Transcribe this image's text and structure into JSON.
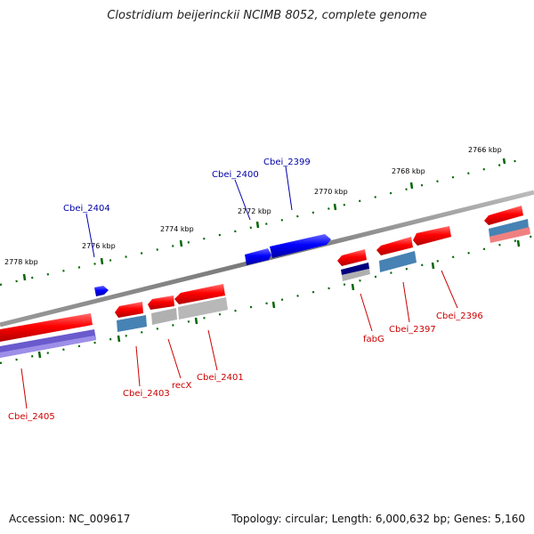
{
  "title": "Clostridium beijerinckii NCIMB 8052, complete genome",
  "footer": {
    "accession": "Accession: NC_009617",
    "summary": "Topology: circular; Length: 6,000,632 bp; Genes: 5,160"
  },
  "ticks": [
    {
      "label": "2766 kbp"
    },
    {
      "label": "2768 kbp"
    },
    {
      "label": "2770 kbp"
    },
    {
      "label": "2772 kbp"
    },
    {
      "label": "2774 kbp"
    },
    {
      "label": "2776 kbp"
    },
    {
      "label": "2778 kbp"
    }
  ],
  "gene_labels": [
    {
      "text": "Cbei_2399",
      "strand": "forward"
    },
    {
      "text": "Cbei_2400",
      "strand": "forward"
    },
    {
      "text": "Cbei_2404",
      "strand": "forward"
    },
    {
      "text": "fabG",
      "strand": "reverse"
    },
    {
      "text": "Cbei_2396",
      "strand": "reverse"
    },
    {
      "text": "Cbei_2397",
      "strand": "reverse"
    },
    {
      "text": "Cbei_2401",
      "strand": "reverse"
    },
    {
      "text": "recX",
      "strand": "reverse"
    },
    {
      "text": "Cbei_2403",
      "strand": "reverse"
    },
    {
      "text": "Cbei_2405",
      "strand": "reverse"
    }
  ],
  "colors": {
    "forward_gene": "#0000ee",
    "reverse_gene": "#ee0000",
    "backbone": "#888888",
    "tick": "#006600",
    "forward_label": "#0000aa",
    "reverse_label": "#cc0000",
    "cog_purple": "#6a5acd",
    "cog_steelblue": "#4682b4",
    "cog_gray": "#b0b0b0",
    "cog_navy": "#000080",
    "cog_pink": "#f08080"
  }
}
